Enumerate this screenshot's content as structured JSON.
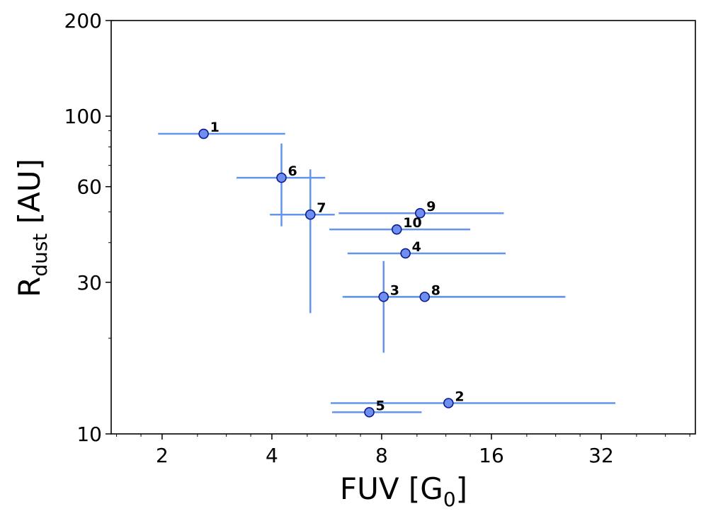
{
  "chart_data": {
    "type": "scatter",
    "title": "",
    "xscale": "log2",
    "yscale": "log",
    "xlim": [
      1.45,
      58
    ],
    "ylim": [
      10,
      200
    ],
    "xlabel": {
      "main": "FUV  [G",
      "sub": "0",
      "end": "]"
    },
    "ylabel": {
      "main": "R",
      "sub": "dust",
      "end": " [AU]"
    },
    "x_ticks": [
      2,
      4,
      8,
      16,
      32
    ],
    "x_tick_labels": [
      "2",
      "4",
      "8",
      "16",
      "32"
    ],
    "y_ticks": [
      10,
      30,
      60,
      100,
      200
    ],
    "y_tick_labels": [
      "10",
      "30",
      "60",
      "100",
      "200"
    ],
    "grid": false,
    "marker_color": "#6e8fef",
    "marker_edge": "#0a1a8c",
    "errorbar_color": "#6495ed",
    "points": [
      {
        "label": "1",
        "x": 2.6,
        "y": 88,
        "xerr": [
          1.95,
          4.35
        ],
        "yerr": null
      },
      {
        "label": "2",
        "x": 12.2,
        "y": 12.5,
        "xerr": [
          5.8,
          35.0
        ],
        "yerr": null
      },
      {
        "label": "3",
        "x": 8.1,
        "y": 27,
        "xerr": [
          6.25,
          25.5
        ],
        "yerr": [
          18,
          35
        ]
      },
      {
        "label": "4",
        "x": 9.3,
        "y": 37,
        "xerr": [
          6.45,
          17.5
        ],
        "yerr": null
      },
      {
        "label": "5",
        "x": 7.4,
        "y": 11.7,
        "xerr": [
          5.85,
          10.3
        ],
        "yerr": null
      },
      {
        "label": "6",
        "x": 4.25,
        "y": 64,
        "xerr": [
          3.2,
          5.6
        ],
        "yerr": [
          45,
          82
        ]
      },
      {
        "label": "7",
        "x": 5.1,
        "y": 49,
        "xerr": [
          3.95,
          5.95
        ],
        "yerr": [
          24,
          68
        ]
      },
      {
        "label": "8",
        "x": 10.5,
        "y": 27,
        "xerr": [
          6.35,
          25.5
        ],
        "yerr": null
      },
      {
        "label": "9",
        "x": 10.2,
        "y": 49.5,
        "xerr": [
          6.1,
          17.3
        ],
        "yerr": null
      },
      {
        "label": "10",
        "x": 8.8,
        "y": 44,
        "xerr": [
          5.75,
          14.0
        ],
        "yerr": null
      }
    ]
  }
}
